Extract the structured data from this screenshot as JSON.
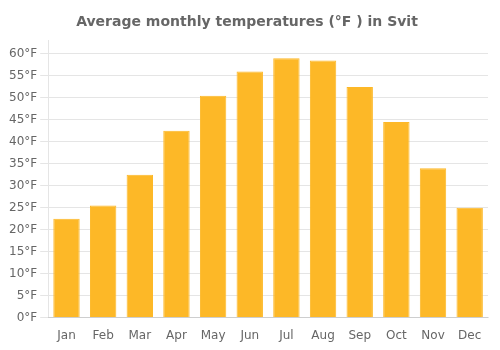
{
  "chart_data": {
    "type": "bar",
    "title": "Average monthly temperatures (°F ) in Svit",
    "categories": [
      "Jan",
      "Feb",
      "Mar",
      "Apr",
      "May",
      "Jun",
      "Jul",
      "Aug",
      "Sep",
      "Oct",
      "Nov",
      "Dec"
    ],
    "values": [
      22.5,
      25.5,
      32.5,
      42.5,
      50.5,
      56.0,
      59.0,
      58.5,
      52.5,
      44.5,
      34.0,
      25.0
    ],
    "color": "#FDB827",
    "ylim": [
      0,
      63
    ],
    "yticks": [
      {
        "value": 0,
        "label": "0°F"
      },
      {
        "value": 5,
        "label": "5°F"
      },
      {
        "value": 10,
        "label": "10°F"
      },
      {
        "value": 15,
        "label": "15°F"
      },
      {
        "value": 20,
        "label": "20°F"
      },
      {
        "value": 25,
        "label": "25°F"
      },
      {
        "value": 30,
        "label": "30°F"
      },
      {
        "value": 35,
        "label": "35°F"
      },
      {
        "value": 40,
        "label": "40°F"
      },
      {
        "value": 45,
        "label": "45°F"
      },
      {
        "value": 50,
        "label": "50°F"
      },
      {
        "value": 55,
        "label": "55°F"
      },
      {
        "value": 60,
        "label": "60°F"
      }
    ],
    "grid": true
  }
}
